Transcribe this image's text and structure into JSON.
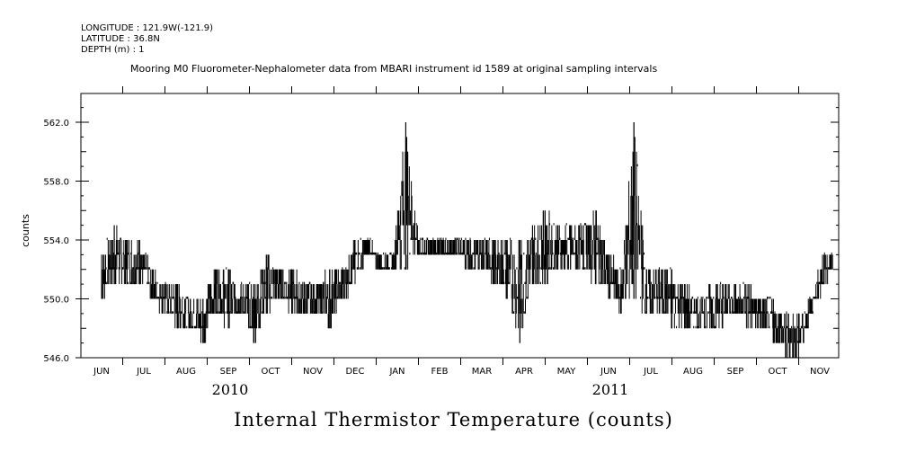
{
  "header": {
    "longitude": "LONGITUDE : 121.9W(-121.9)",
    "latitude": "LATITUDE : 36.8N",
    "depth": "DEPTH (m) : 1"
  },
  "chart_data": {
    "type": "line",
    "title": "Mooring M0 Fluorometer-Nephalometer data from MBARI instrument id 1589 at original sampling intervals",
    "xlabel": "Internal Thermistor Temperature (counts)",
    "ylabel": "counts",
    "ylim": [
      546.0,
      564.0
    ],
    "y_ticks": [
      "546.0",
      "550.0",
      "554.0",
      "558.0",
      "562.0"
    ],
    "x_range_months": [
      0,
      17.9
    ],
    "month_labels": [
      "JUN",
      "JUL",
      "AUG",
      "SEP",
      "OCT",
      "NOV",
      "DEC",
      "JAN",
      "FEB",
      "MAR",
      "APR",
      "MAY",
      "JUN",
      "JUL",
      "AUG",
      "SEP",
      "OCT",
      "NOV"
    ],
    "year_labels": [
      {
        "label": "2010",
        "month_index": 3
      },
      {
        "label": "2011",
        "month_index": 12
      }
    ],
    "series": [
      {
        "name": "counts",
        "min_envelope": [
          [
            0.0,
            550
          ],
          [
            0.3,
            551
          ],
          [
            0.6,
            551
          ],
          [
            0.9,
            551
          ],
          [
            1.2,
            550
          ],
          [
            1.5,
            549
          ],
          [
            1.8,
            548
          ],
          [
            2.1,
            548
          ],
          [
            2.4,
            547
          ],
          [
            2.7,
            549
          ],
          [
            3.0,
            548
          ],
          [
            3.3,
            549
          ],
          [
            3.6,
            547
          ],
          [
            3.9,
            549
          ],
          [
            4.2,
            550
          ],
          [
            4.5,
            549
          ],
          [
            4.8,
            549
          ],
          [
            5.1,
            549
          ],
          [
            5.4,
            548
          ],
          [
            5.7,
            550
          ],
          [
            6.0,
            551
          ],
          [
            6.3,
            553
          ],
          [
            6.6,
            552
          ],
          [
            6.9,
            552
          ],
          [
            7.2,
            552
          ],
          [
            7.5,
            553
          ],
          [
            7.8,
            553
          ],
          [
            8.1,
            553
          ],
          [
            8.4,
            553
          ],
          [
            8.7,
            552
          ],
          [
            9.0,
            552
          ],
          [
            9.3,
            551
          ],
          [
            9.6,
            550
          ],
          [
            9.9,
            547
          ],
          [
            10.2,
            551
          ],
          [
            10.5,
            551
          ],
          [
            10.8,
            552
          ],
          [
            11.1,
            552
          ],
          [
            11.4,
            552
          ],
          [
            11.7,
            551
          ],
          [
            12.0,
            550
          ],
          [
            12.3,
            549
          ],
          [
            12.6,
            550
          ],
          [
            12.9,
            549
          ],
          [
            13.2,
            549
          ],
          [
            13.5,
            548
          ],
          [
            13.8,
            548
          ],
          [
            14.1,
            548
          ],
          [
            14.4,
            548
          ],
          [
            14.7,
            548
          ],
          [
            15.0,
            549
          ],
          [
            15.3,
            548
          ],
          [
            15.6,
            548
          ],
          [
            15.9,
            547
          ],
          [
            16.2,
            546
          ],
          [
            16.5,
            546
          ],
          [
            16.8,
            549
          ],
          [
            17.1,
            551
          ],
          [
            17.3,
            552
          ]
        ],
        "max_envelope": [
          [
            0.0,
            553
          ],
          [
            0.3,
            555
          ],
          [
            0.6,
            554
          ],
          [
            0.9,
            554
          ],
          [
            1.2,
            552
          ],
          [
            1.5,
            551
          ],
          [
            1.8,
            551
          ],
          [
            2.1,
            550
          ],
          [
            2.4,
            550
          ],
          [
            2.7,
            552
          ],
          [
            3.0,
            552
          ],
          [
            3.3,
            551
          ],
          [
            3.6,
            551
          ],
          [
            3.9,
            553
          ],
          [
            4.2,
            552
          ],
          [
            4.5,
            552
          ],
          [
            4.8,
            551
          ],
          [
            5.1,
            551
          ],
          [
            5.4,
            552
          ],
          [
            5.7,
            552
          ],
          [
            6.0,
            554
          ],
          [
            6.3,
            554
          ],
          [
            6.6,
            553
          ],
          [
            6.9,
            553
          ],
          [
            7.2,
            562
          ],
          [
            7.5,
            554
          ],
          [
            7.8,
            554
          ],
          [
            8.1,
            554
          ],
          [
            8.4,
            554
          ],
          [
            8.7,
            554
          ],
          [
            9.0,
            554
          ],
          [
            9.3,
            554
          ],
          [
            9.6,
            554
          ],
          [
            9.9,
            554
          ],
          [
            10.2,
            555
          ],
          [
            10.5,
            556
          ],
          [
            10.8,
            555
          ],
          [
            11.1,
            555
          ],
          [
            11.4,
            555
          ],
          [
            11.7,
            556
          ],
          [
            12.0,
            553
          ],
          [
            12.3,
            552
          ],
          [
            12.6,
            562
          ],
          [
            12.9,
            552
          ],
          [
            13.2,
            552
          ],
          [
            13.5,
            552
          ],
          [
            13.8,
            551
          ],
          [
            14.1,
            550
          ],
          [
            14.4,
            551
          ],
          [
            14.7,
            551
          ],
          [
            15.0,
            551
          ],
          [
            15.3,
            551
          ],
          [
            15.6,
            550
          ],
          [
            15.9,
            550
          ],
          [
            16.2,
            549
          ],
          [
            16.5,
            549
          ],
          [
            16.8,
            550
          ],
          [
            17.1,
            553
          ],
          [
            17.3,
            553
          ]
        ]
      }
    ]
  }
}
